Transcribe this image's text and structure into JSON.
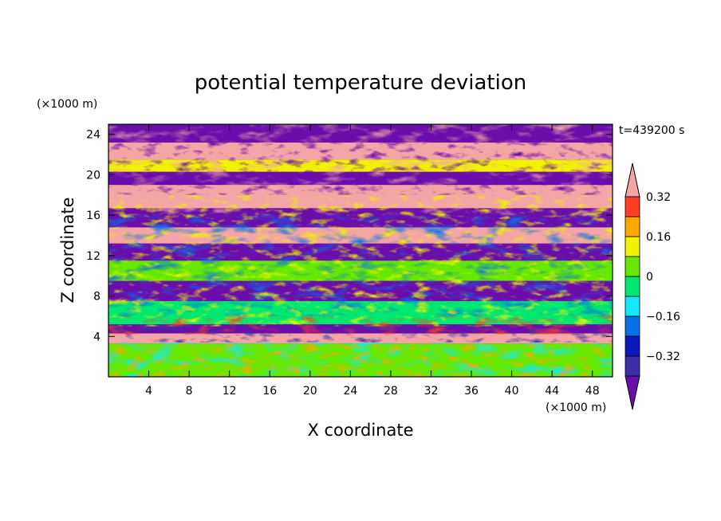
{
  "chart_data": {
    "type": "heatmap",
    "title": "potential temperature deviation",
    "time_label": "t=439200 s",
    "xlabel": "X coordinate",
    "ylabel": "Z coordinate",
    "x_unit": "(×1000 m)",
    "y_unit": "(×1000 m)",
    "xlim": [
      0,
      50
    ],
    "ylim": [
      0,
      25
    ],
    "x_ticks": [
      4,
      8,
      12,
      16,
      20,
      24,
      28,
      32,
      36,
      40,
      44,
      48
    ],
    "y_ticks": [
      4,
      8,
      12,
      16,
      20,
      24
    ],
    "colorbar": {
      "levels": [
        -0.4,
        -0.32,
        -0.24,
        -0.16,
        -0.08,
        0,
        0.08,
        0.16,
        0.24,
        0.32,
        0.4
      ],
      "labels": [
        "0.32",
        "0.16",
        "0",
        "-0.16",
        "-0.32"
      ],
      "label_values": [
        0.32,
        0.16,
        0,
        -0.16,
        -0.32
      ],
      "colors": [
        "#6a0dab",
        "#3a2fa8",
        "#0a18b8",
        "#0a70e8",
        "#12e8ff",
        "#00e870",
        "#66e800",
        "#f2f200",
        "#ffa600",
        "#ff4020",
        "#f4a5a5"
      ]
    },
    "note": "Field values are layered: near-surface mixed layer (0-3.5 km) weakly varying around 0; above, alternating warm (pink) and cool (purple) streaks"
  }
}
